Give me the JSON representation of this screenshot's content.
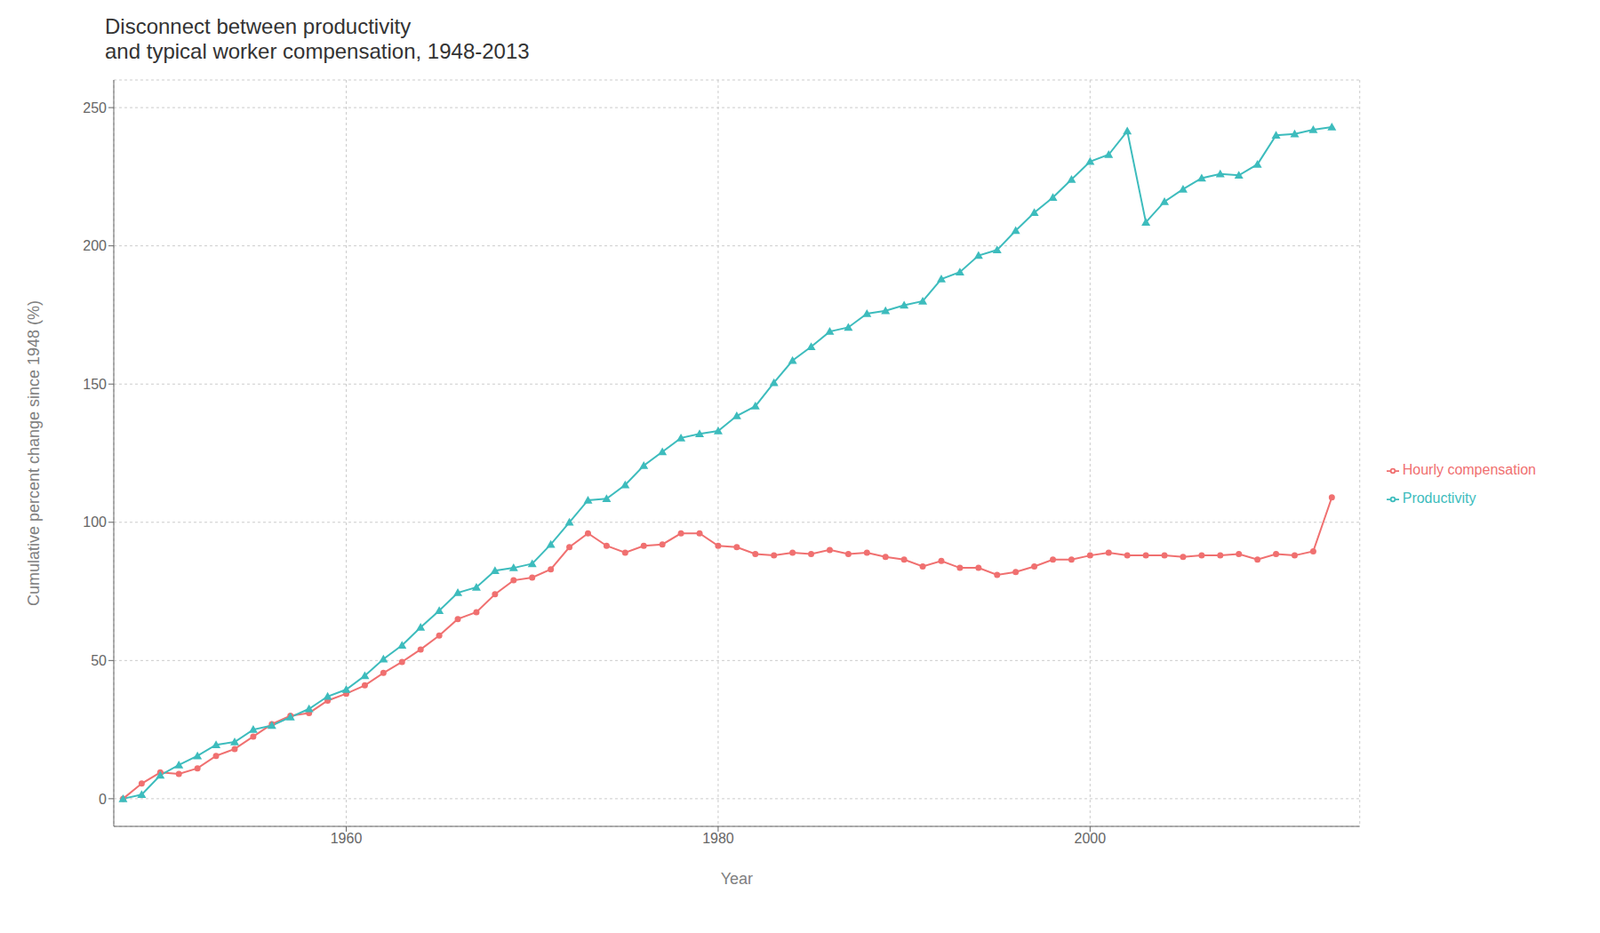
{
  "chart_data": {
    "type": "line",
    "title": "Disconnect between productivity\nand typical worker compensation, 1948-2013",
    "x_label": "Year",
    "y_label": "Cumulative percent change since 1948 (%)",
    "x": [
      1948,
      1949,
      1950,
      1951,
      1952,
      1953,
      1954,
      1955,
      1956,
      1957,
      1958,
      1959,
      1960,
      1961,
      1962,
      1963,
      1964,
      1965,
      1966,
      1967,
      1968,
      1969,
      1970,
      1971,
      1972,
      1973,
      1974,
      1975,
      1976,
      1977,
      1978,
      1979,
      1980,
      1981,
      1982,
      1983,
      1984,
      1985,
      1986,
      1987,
      1988,
      1989,
      1990,
      1991,
      1992,
      1993,
      1994,
      1995,
      1996,
      1997,
      1998,
      1999,
      2000,
      2001,
      2002,
      2003,
      2004,
      2005,
      2006,
      2007,
      2008,
      2009,
      2010,
      2011,
      2012,
      2013
    ],
    "series": [
      {
        "name": "Hourly compensation",
        "color": "#F07070",
        "marker": "circle",
        "values": [
          0.0,
          5.5,
          9.5,
          9.0,
          11.0,
          15.5,
          18.0,
          22.5,
          27.0,
          30.0,
          31.0,
          35.5,
          38.0,
          41.0,
          45.5,
          49.5,
          54.0,
          59.0,
          65.0,
          67.5,
          74.0,
          79.0,
          80.0,
          83.0,
          91.0,
          96.0,
          91.5,
          89.0,
          91.5,
          92.0,
          96.0,
          96.0,
          91.5,
          91.0,
          88.5,
          88.0,
          89.0,
          88.5,
          90.0,
          88.5,
          89.0,
          87.5,
          86.5,
          84.0,
          86.0,
          83.5,
          83.5,
          81.0,
          82.0,
          84.0,
          86.5,
          86.5,
          88.0,
          89.0,
          88.0,
          88.0,
          88.0,
          87.5,
          88.0,
          88.0,
          88.5,
          86.5,
          88.5,
          88.0,
          89.5,
          109.0
        ]
      },
      {
        "name": "Productivity",
        "color": "#3DBCBD",
        "marker": "triangle",
        "values": [
          0.0,
          1.5,
          8.5,
          12.2,
          15.5,
          19.5,
          20.5,
          25.0,
          26.5,
          29.5,
          32.5,
          37.0,
          39.5,
          44.5,
          50.5,
          55.5,
          62.0,
          68.0,
          74.5,
          76.5,
          82.5,
          83.5,
          85.0,
          92.0,
          100.0,
          108.0,
          108.5,
          113.5,
          120.5,
          125.5,
          130.5,
          132.0,
          133.0,
          138.5,
          142.0,
          150.5,
          158.5,
          163.5,
          169.0,
          170.5,
          175.5,
          176.5,
          178.5,
          180.0,
          188.0,
          190.5,
          196.5,
          198.5,
          205.5,
          212.0,
          217.5,
          224.0,
          230.5,
          233.0,
          241.5,
          208.5,
          216.0,
          220.5,
          224.5,
          226.0,
          225.5,
          229.5,
          240.0,
          240.5,
          242.0,
          243.0
        ]
      }
    ],
    "xlim": [
      1947.5,
      2014.5
    ],
    "xticks": [
      1960,
      1980,
      2000
    ],
    "ylim": [
      -10,
      260
    ],
    "yticks": [
      0,
      50,
      100,
      150,
      200,
      250
    ],
    "grid": true,
    "legend": "right"
  }
}
